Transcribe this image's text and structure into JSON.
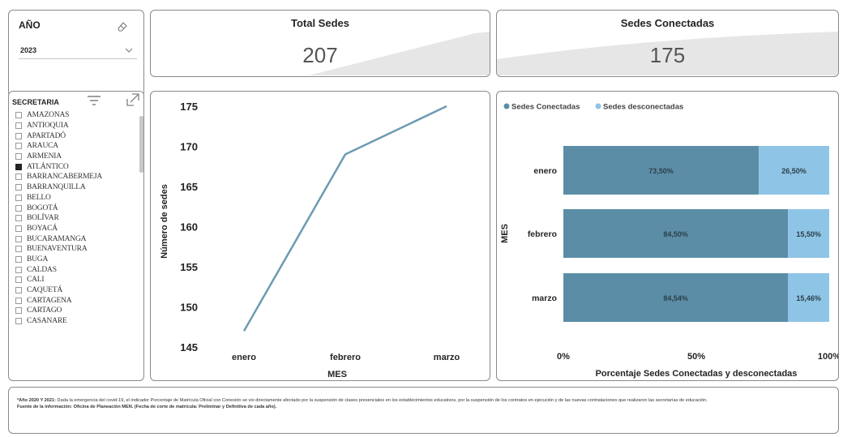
{
  "year_slicer": {
    "title": "AÑO",
    "selected": "2023"
  },
  "kpi_total": {
    "title": "Total Sedes",
    "value": "207"
  },
  "kpi_connected": {
    "title": "Sedes Conectadas",
    "value": "175"
  },
  "secretaria_slicer": {
    "title": "SECRETARIA",
    "items": [
      {
        "label": "AMAZONAS",
        "checked": false
      },
      {
        "label": "ANTIOQUIA",
        "checked": false
      },
      {
        "label": "APARTADÓ",
        "checked": false
      },
      {
        "label": "ARAUCA",
        "checked": false
      },
      {
        "label": "ARMENIA",
        "checked": false
      },
      {
        "label": "ATLÁNTICO",
        "checked": true
      },
      {
        "label": "BARRANCABERMEJA",
        "checked": false
      },
      {
        "label": "BARRANQUILLA",
        "checked": false
      },
      {
        "label": "BELLO",
        "checked": false
      },
      {
        "label": "BOGOTÁ",
        "checked": false
      },
      {
        "label": "BOLÍVAR",
        "checked": false
      },
      {
        "label": "BOYACÁ",
        "checked": false
      },
      {
        "label": "BUCARAMANGA",
        "checked": false
      },
      {
        "label": "BUENAVENTURA",
        "checked": false
      },
      {
        "label": "BUGA",
        "checked": false
      },
      {
        "label": "CALDAS",
        "checked": false
      },
      {
        "label": "CALI",
        "checked": false
      },
      {
        "label": "CAQUETÁ",
        "checked": false
      },
      {
        "label": "CARTAGENA",
        "checked": false
      },
      {
        "label": "CARTAGO",
        "checked": false
      },
      {
        "label": "CASANARE",
        "checked": false
      }
    ]
  },
  "colors": {
    "conectadas": "#5b8ea6",
    "desconectadas": "#8ec4e6",
    "line": "#6d9bb3"
  },
  "chart_data": [
    {
      "type": "line",
      "categories": [
        "enero",
        "febrero",
        "marzo"
      ],
      "series": [
        {
          "values": [
            147,
            169,
            175
          ]
        }
      ],
      "xlabel": "MES",
      "ylabel": "Número de sedes",
      "ylim": [
        145,
        175
      ],
      "yticks": [
        "175",
        "170",
        "165",
        "160",
        "155",
        "150",
        "145"
      ],
      "grid": false
    },
    {
      "type": "bar",
      "orientation": "horizontal",
      "stacked": "100%",
      "categories": [
        "enero",
        "febrero",
        "marzo"
      ],
      "series": [
        {
          "name": "Sedes Conectadas",
          "values": [
            73.5,
            84.5,
            84.54
          ],
          "labels": [
            "73,50%",
            "84,50%",
            "84,54%"
          ]
        },
        {
          "name": "Sedes desconectadas",
          "values": [
            26.5,
            15.5,
            15.46
          ],
          "labels": [
            "26,50%",
            "15,50%",
            "15,46%"
          ]
        }
      ],
      "xlabel": "Porcentaje Sedes Conectadas y desconectadas",
      "ylabel": "MES",
      "xticks": [
        "0%",
        "50%",
        "100%"
      ],
      "legend": "top-left"
    }
  ],
  "note": {
    "lead": "*Año 2020 Y 2021:",
    "text": " Dada la emergencia del covid-19, el indicador Porcentaje de Matrícula Oficial con Conexión se vio directamente afectado por la suspensión de clases presenciales en los establecimientos educativos, por la suspensión de los contratos en ejecución y de las nuevas contrataciones que realizaron las secretarías de educación.",
    "source": "Fuente de la información: Oficina de Planeación MEN. (Fecha de corte de matrícula: Preliminar y Definitiva de cada año)."
  }
}
